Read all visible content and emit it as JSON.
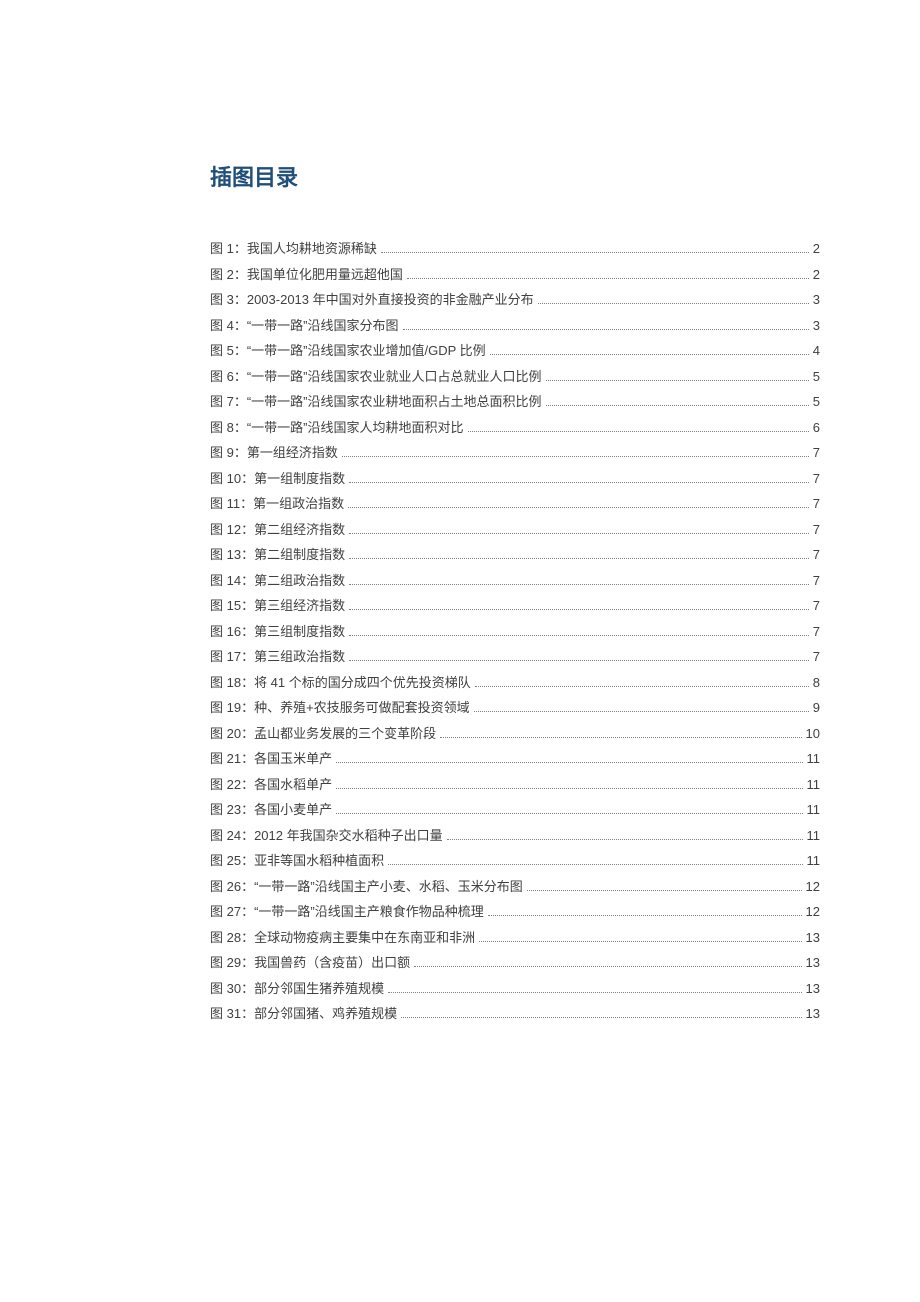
{
  "heading": "插图目录",
  "heading_color": "#1f4e79",
  "heading_fontsize": 22,
  "entry_color": "#404040",
  "entry_fontsize": 13,
  "entries": [
    {
      "num": "图 1",
      "caption": "我国人均耕地资源稀缺",
      "page": "2"
    },
    {
      "num": "图 2",
      "caption": "我国单位化肥用量远超他国",
      "page": "2"
    },
    {
      "num": "图 3",
      "caption": "2003-2013 年中国对外直接投资的非金融产业分布",
      "page": "3"
    },
    {
      "num": "图 4",
      "caption": "“一带一路”沿线国家分布图",
      "page": "3"
    },
    {
      "num": "图 5",
      "caption": "“一带一路”沿线国家农业增加值/GDP 比例",
      "page": "4"
    },
    {
      "num": "图 6",
      "caption": "“一带一路”沿线国家农业就业人口占总就业人口比例",
      "page": "5"
    },
    {
      "num": "图 7",
      "caption": "“一带一路”沿线国家农业耕地面积占土地总面积比例",
      "page": "5"
    },
    {
      "num": "图 8",
      "caption": "“一带一路”沿线国家人均耕地面积对比",
      "page": "6"
    },
    {
      "num": "图 9",
      "caption": "第一组经济指数",
      "page": "7"
    },
    {
      "num": "图 10",
      "caption": "第一组制度指数",
      "page": "7"
    },
    {
      "num": "图 11",
      "caption": "第一组政治指数",
      "page": "7"
    },
    {
      "num": "图 12",
      "caption": "第二组经济指数",
      "page": "7"
    },
    {
      "num": "图 13",
      "caption": "第二组制度指数",
      "page": "7"
    },
    {
      "num": "图 14",
      "caption": "第二组政治指数",
      "page": "7"
    },
    {
      "num": "图 15",
      "caption": "第三组经济指数",
      "page": "7"
    },
    {
      "num": "图 16",
      "caption": "第三组制度指数",
      "page": "7"
    },
    {
      "num": "图 17",
      "caption": "第三组政治指数",
      "page": "7"
    },
    {
      "num": "图 18",
      "caption": "将 41 个标的国分成四个优先投资梯队",
      "page": "8"
    },
    {
      "num": "图 19",
      "caption": "种、养殖+农技服务可做配套投资领域",
      "page": "9"
    },
    {
      "num": "图 20",
      "caption": "孟山都业务发展的三个变革阶段",
      "page": "10"
    },
    {
      "num": "图 21",
      "caption": "各国玉米单产",
      "page": "11"
    },
    {
      "num": "图 22",
      "caption": "各国水稻单产",
      "page": "11"
    },
    {
      "num": "图 23",
      "caption": "各国小麦单产",
      "page": "11"
    },
    {
      "num": "图 24",
      "caption": "2012 年我国杂交水稻种子出口量",
      "page": "11"
    },
    {
      "num": "图 25",
      "caption": "亚非等国水稻种植面积",
      "page": "11"
    },
    {
      "num": "图 26",
      "caption": "“一带一路”沿线国主产小麦、水稻、玉米分布图",
      "page": "12"
    },
    {
      "num": "图 27",
      "caption": "“一带一路”沿线国主产粮食作物品种梳理",
      "page": "12"
    },
    {
      "num": "图 28",
      "caption": "全球动物疫病主要集中在东南亚和非洲",
      "page": "13"
    },
    {
      "num": "图 29",
      "caption": "我国兽药（含疫苗）出口额",
      "page": "13"
    },
    {
      "num": "图 30",
      "caption": "部分邻国生猪养殖规模",
      "page": "13"
    },
    {
      "num": "图 31",
      "caption": "部分邻国猪、鸡养殖规模",
      "page": "13"
    }
  ]
}
